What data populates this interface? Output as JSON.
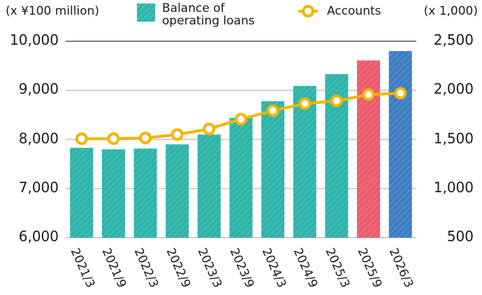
{
  "chart_data": {
    "type": "bar",
    "title": "",
    "categories": [
      "2021/3",
      "2021/9",
      "2022/3",
      "2022/9",
      "2023/3",
      "2023/9",
      "2024/3",
      "2024/9",
      "2025/3",
      "2025/9",
      "2026/3"
    ],
    "series": [
      {
        "name": "Balance of operating loans",
        "type": "bar",
        "axis": "left",
        "values": [
          7830,
          7800,
          7815,
          7900,
          8100,
          8440,
          8780,
          9090,
          9330,
          9610,
          9800
        ],
        "colors": [
          "#2bb3a8",
          "#2bb3a8",
          "#2bb3a8",
          "#2bb3a8",
          "#2bb3a8",
          "#2bb3a8",
          "#2bb3a8",
          "#2bb3a8",
          "#2bb3a8",
          "#ec5a6c",
          "#3a7cc3"
        ]
      },
      {
        "name": "Accounts",
        "type": "line",
        "axis": "right",
        "color": "#f5b400",
        "values": [
          1507,
          1508,
          1515,
          1550,
          1607,
          1707,
          1793,
          1864,
          1893,
          1957,
          1971
        ]
      }
    ],
    "ylabel": "(x ¥100 million)",
    "y2label": "(x 1,000)",
    "ylim": [
      6000,
      10000
    ],
    "y2lim": [
      500,
      2500
    ],
    "yticks": [
      "10,000",
      "9,000",
      "8,000",
      "7,000",
      "6,000"
    ],
    "y2ticks": [
      "2,500",
      "2,000",
      "1,500",
      "1,000",
      "500"
    ],
    "legend": [
      "Balance of operating loans",
      "Accounts"
    ],
    "legend_position": "top",
    "grid": false
  },
  "labels": {
    "unit_left": "(x ¥100 million)",
    "unit_right": "(x 1,000)",
    "legend_bar_line1": "Balance of",
    "legend_bar_line2": "operating loans",
    "legend_line": "Accounts"
  }
}
